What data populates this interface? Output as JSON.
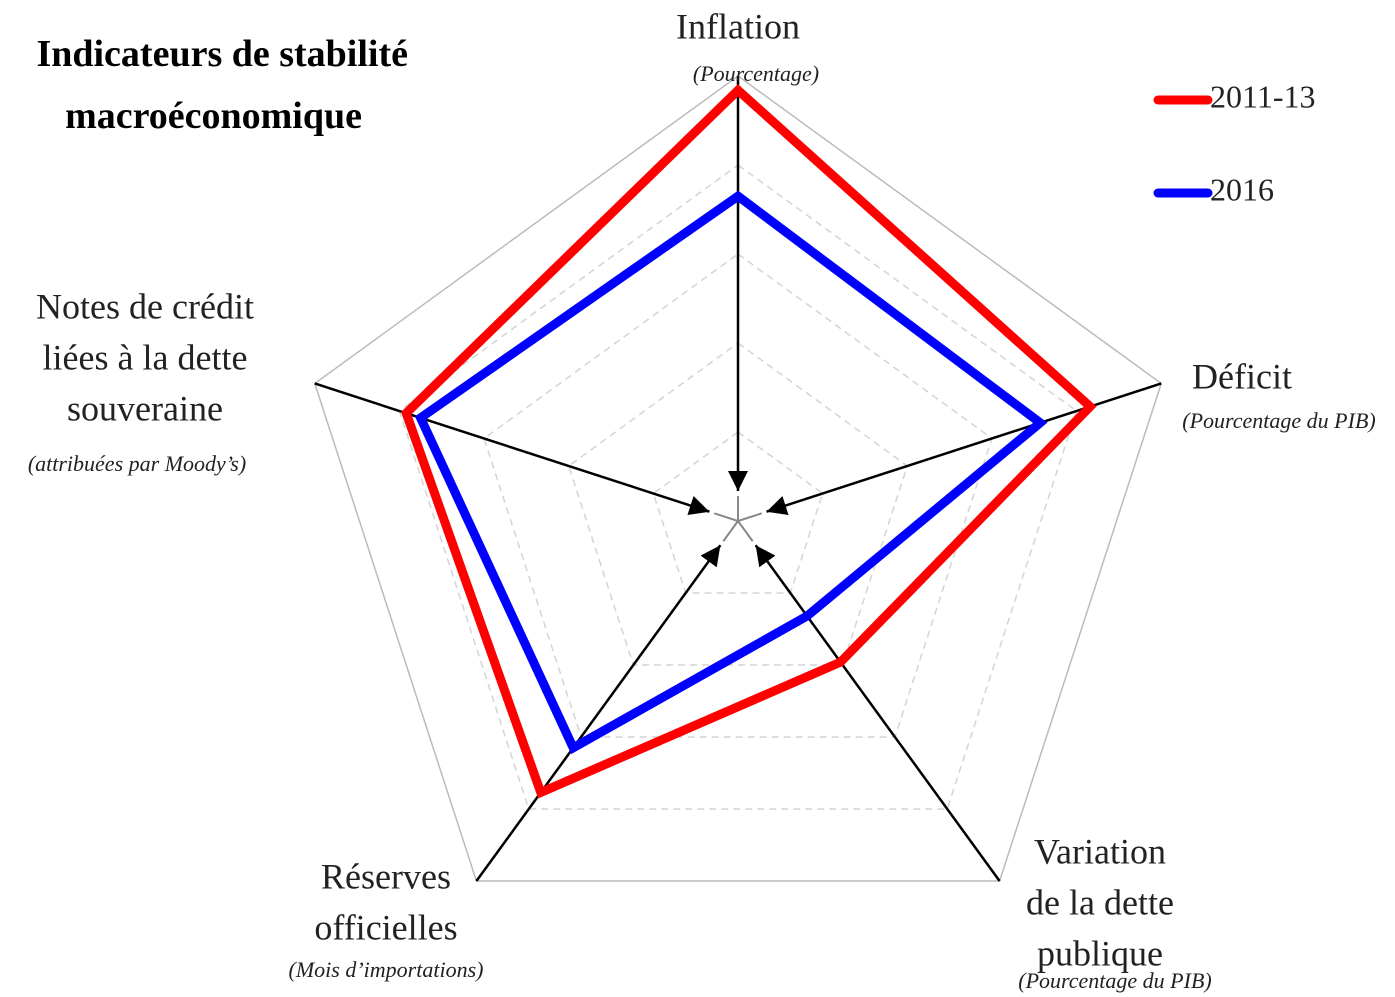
{
  "chart_data": {
    "type": "radar",
    "title": [
      "Indicateurs de stabilité",
      "macroéconomique"
    ],
    "categories": [
      [
        "Inflation"
      ],
      [
        "Déficit"
      ],
      [
        "Variation",
        "de la dette",
        "publique"
      ],
      [
        "Réserves",
        "officielles"
      ],
      [
        "Notes de crédit",
        "liées à la dette",
        "souveraine"
      ]
    ],
    "units": [
      "(Pourcentage)",
      "(Pourcentage du PIB)",
      "(Pourcentage du PIB)",
      "(Mois d’importations)",
      "(attribuées par Moody’s)"
    ],
    "rlim": [
      0,
      5
    ],
    "rticks": [
      1,
      2,
      3,
      4,
      5
    ],
    "grid": true,
    "legend": "top-right",
    "series": [
      {
        "name": "2011-13",
        "color": "#ff0000",
        "values": [
          4.84,
          4.16,
          1.96,
          3.77,
          3.92
        ]
      },
      {
        "name": "2016",
        "color": "#0000ff",
        "values": [
          3.65,
          3.57,
          1.32,
          3.15,
          3.75
        ]
      }
    ]
  }
}
